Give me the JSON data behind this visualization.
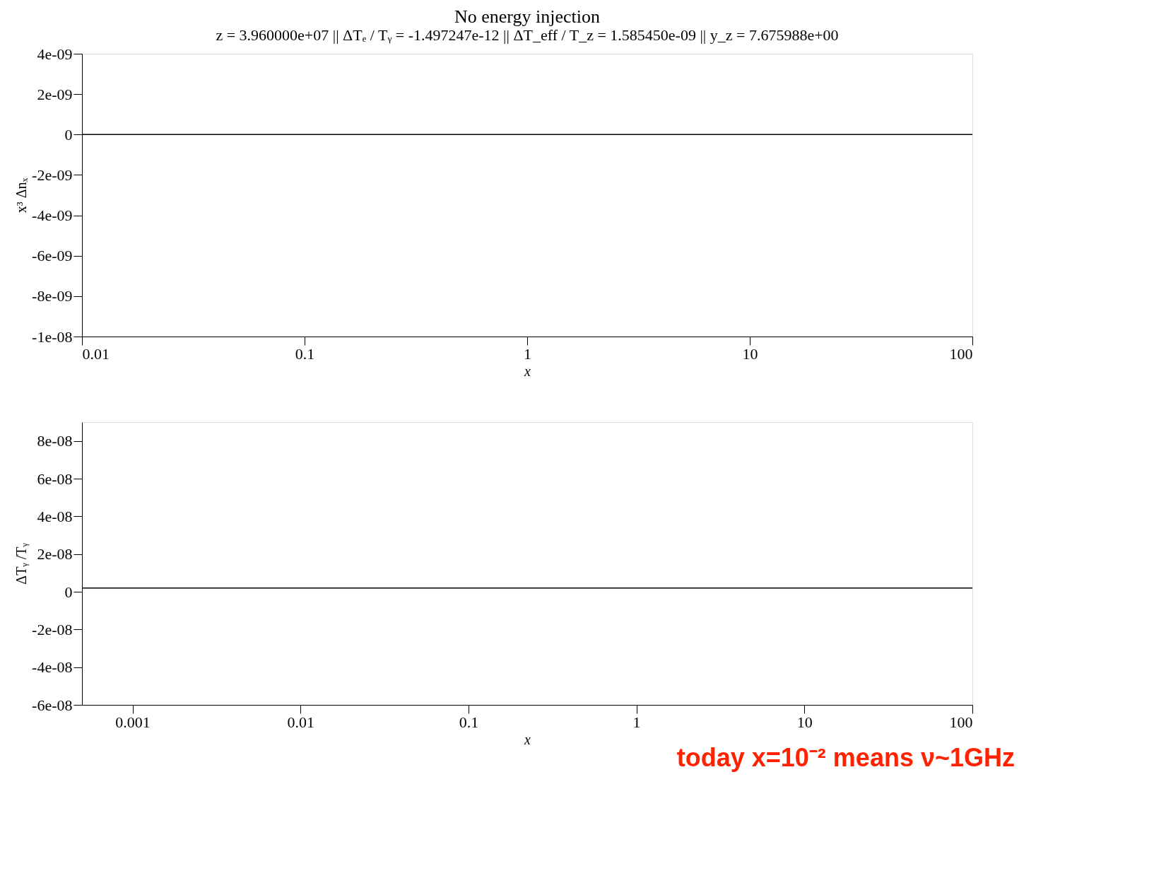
{
  "chart_data": [
    {
      "type": "line",
      "title": "No energy injection",
      "subtitle": "z = 3.960000e+07  ||  ΔTₑ / Tᵧ = -1.497247e-12  ||  ΔT_eff / T_z = 1.585450e-09  ||  y_z = 7.675988e+00",
      "xlabel": "x",
      "ylabel": "x³ Δnₓ",
      "log": "x",
      "grid": false,
      "marker": "none",
      "line_style": "solid",
      "xlim": [
        0.01,
        100
      ],
      "xticks": [
        0.01,
        0.1,
        1,
        10,
        100
      ],
      "ylim": [
        -1e-08,
        4e-09
      ],
      "yticks": [
        {
          "value": 4e-09,
          "label": "4e-09"
        },
        {
          "value": 2e-09,
          "label": "2e-09"
        },
        0,
        {
          "value": -2e-09,
          "label": "-2e-09"
        },
        {
          "value": -4e-09,
          "label": "-4e-09"
        },
        {
          "value": -6e-09,
          "label": "-6e-09"
        },
        {
          "value": -8e-09,
          "label": "-8e-09"
        },
        {
          "value": -1e-08,
          "label": "-1e-08"
        }
      ],
      "series": [
        {
          "color": "#000000",
          "x": [
            0.01,
            100
          ],
          "values": [
            0,
            0
          ]
        }
      ]
    },
    {
      "type": "line",
      "xlabel": "x",
      "ylabel": "ΔTᵧ /Tᵧ",
      "log": "x",
      "grid": false,
      "marker": "none",
      "line_style": "solid",
      "annotations": [
        "today x=10⁻² means ν~1GHz"
      ],
      "xlim": [
        0.0005,
        100
      ],
      "xticks": [
        0.001,
        0.01,
        0.1,
        1,
        10,
        100
      ],
      "ylim": [
        -6e-08,
        9e-08
      ],
      "yticks": [
        {
          "value": 8e-08,
          "label": "8e-08"
        },
        {
          "value": 6e-08,
          "label": "6e-08"
        },
        {
          "value": 4e-08,
          "label": "4e-08"
        },
        {
          "value": 2e-08,
          "label": "2e-08"
        },
        0,
        {
          "value": -2e-08,
          "label": "-2e-08"
        },
        {
          "value": -4e-08,
          "label": "-4e-08"
        },
        {
          "value": -6e-08,
          "label": "-6e-08"
        }
      ],
      "series": [
        {
          "color": "#000000",
          "x": [
            0.0005,
            100
          ],
          "values": [
            2e-09,
            2e-09
          ]
        }
      ]
    }
  ]
}
